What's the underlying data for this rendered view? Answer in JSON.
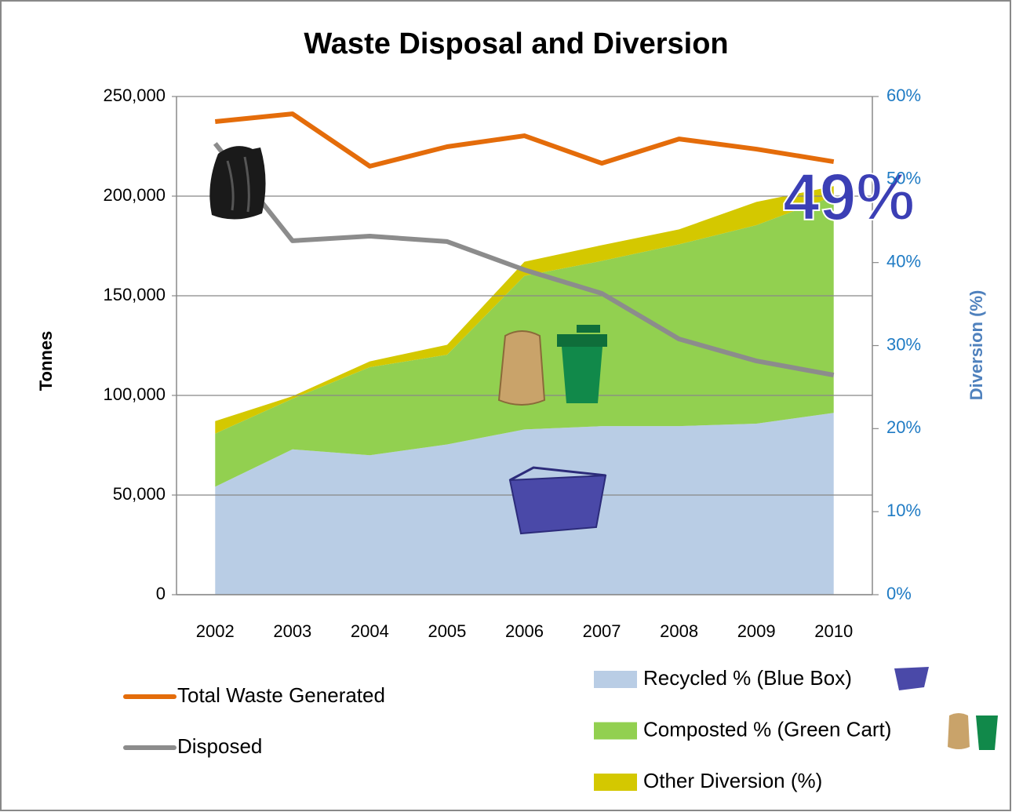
{
  "chart_data": {
    "type": "area",
    "title": "Waste Disposal and Diversion",
    "y_label": "Tonnes",
    "y2_label": "Diversion   (%)",
    "annotation": "49%",
    "categories": [
      "2002",
      "2003",
      "2004",
      "2005",
      "2006",
      "2007",
      "2008",
      "2009",
      "2010"
    ],
    "ylim": [
      0,
      250000
    ],
    "yticks": [
      0,
      {
        "value": 50000,
        "label": "50,000"
      },
      {
        "value": 100000,
        "label": "100,000"
      },
      {
        "value": 150000,
        "label": "150,000"
      },
      {
        "value": 200000,
        "label": "200,000"
      },
      {
        "value": 250000,
        "label": "250,000"
      }
    ],
    "y2lim": [
      0,
      60
    ],
    "y2ticks": [
      {
        "value": 0,
        "label": "0%"
      },
      {
        "value": 10,
        "label": "10%"
      },
      {
        "value": 20,
        "label": "20%"
      },
      {
        "value": 30,
        "label": "30%"
      },
      {
        "value": 40,
        "label": "40%"
      },
      {
        "value": 50,
        "label": "50%"
      },
      {
        "value": 60,
        "label": "60%"
      }
    ],
    "grid": true,
    "series": [
      {
        "name": "Recycled % (Blue Box)",
        "type": "area",
        "axis": "y2",
        "color": "#b9cde5",
        "values": [
          13.0,
          17.5,
          16.8,
          18.1,
          19.9,
          20.3,
          20.3,
          20.6,
          21.9
        ]
      },
      {
        "name": "Composted % (Green Cart)",
        "type": "area",
        "axis": "y2",
        "color": "#92d050",
        "values": [
          6.4,
          6.1,
          10.6,
          10.8,
          18.5,
          19.9,
          21.9,
          23.9,
          26.1
        ]
      },
      {
        "name": "Other Diversion (%)",
        "type": "area",
        "axis": "y2",
        "color": "#d4c800",
        "values": [
          1.5,
          0.3,
          0.7,
          1.2,
          1.7,
          1.9,
          1.8,
          2.8,
          1.2
        ]
      },
      {
        "name": "Total Waste Generated",
        "type": "line",
        "color": "#e46c0a",
        "values": [
          237400,
          241300,
          215000,
          224800,
          230300,
          216500,
          228700,
          223600,
          217300
        ]
      },
      {
        "name": "Disposed",
        "type": "line",
        "color": "#8c8c8c",
        "values": [
          226400,
          177600,
          179900,
          177200,
          163000,
          151200,
          128300,
          117300,
          110200
        ]
      }
    ]
  }
}
